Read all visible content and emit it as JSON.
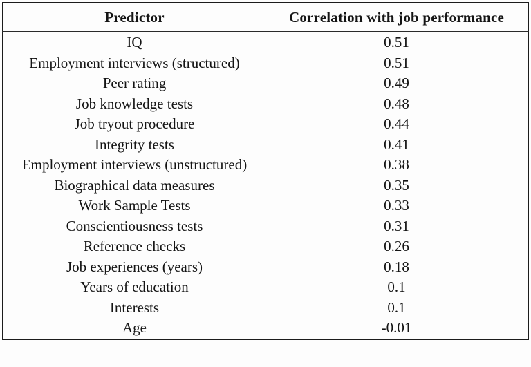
{
  "table": {
    "columns": [
      "Predictor",
      "Correlation with job performance"
    ],
    "rows": [
      {
        "predictor": "IQ",
        "value": "0.51"
      },
      {
        "predictor": "Employment interviews (structured)",
        "value": "0.51"
      },
      {
        "predictor": "Peer rating",
        "value": "0.49"
      },
      {
        "predictor": "Job knowledge tests",
        "value": "0.48"
      },
      {
        "predictor": "Job tryout procedure",
        "value": "0.44"
      },
      {
        "predictor": "Integrity tests",
        "value": "0.41"
      },
      {
        "predictor": "Employment interviews (unstructured)",
        "value": "0.38"
      },
      {
        "predictor": "Biographical data measures",
        "value": "0.35"
      },
      {
        "predictor": "Work Sample Tests",
        "value": "0.33"
      },
      {
        "predictor": "Conscientiousness tests",
        "value": "0.31"
      },
      {
        "predictor": "Reference checks",
        "value": "0.26"
      },
      {
        "predictor": "Job experiences (years)",
        "value": "0.18"
      },
      {
        "predictor": "Years of education",
        "value": "0.1"
      },
      {
        "predictor": "Interests",
        "value": "0.1"
      },
      {
        "predictor": "Age",
        "value": "-0.01"
      }
    ]
  },
  "chart_data": {
    "type": "table",
    "title": "",
    "columns": [
      "Predictor",
      "Correlation with job performance"
    ],
    "rows": [
      [
        "IQ",
        0.51
      ],
      [
        "Employment interviews (structured)",
        0.51
      ],
      [
        "Peer rating",
        0.49
      ],
      [
        "Job knowledge tests",
        0.48
      ],
      [
        "Job tryout procedure",
        0.44
      ],
      [
        "Integrity tests",
        0.41
      ],
      [
        "Employment interviews (unstructured)",
        0.38
      ],
      [
        "Biographical data measures",
        0.35
      ],
      [
        "Work Sample Tests",
        0.33
      ],
      [
        "Conscientiousness tests",
        0.31
      ],
      [
        "Reference checks",
        0.26
      ],
      [
        "Job experiences (years)",
        0.18
      ],
      [
        "Years of education",
        0.1
      ],
      [
        "Interests",
        0.1
      ],
      [
        "Age",
        -0.01
      ]
    ]
  },
  "colors": {
    "text": "#141414",
    "border": "#1c1c1c",
    "background": "#fdfdfd"
  }
}
